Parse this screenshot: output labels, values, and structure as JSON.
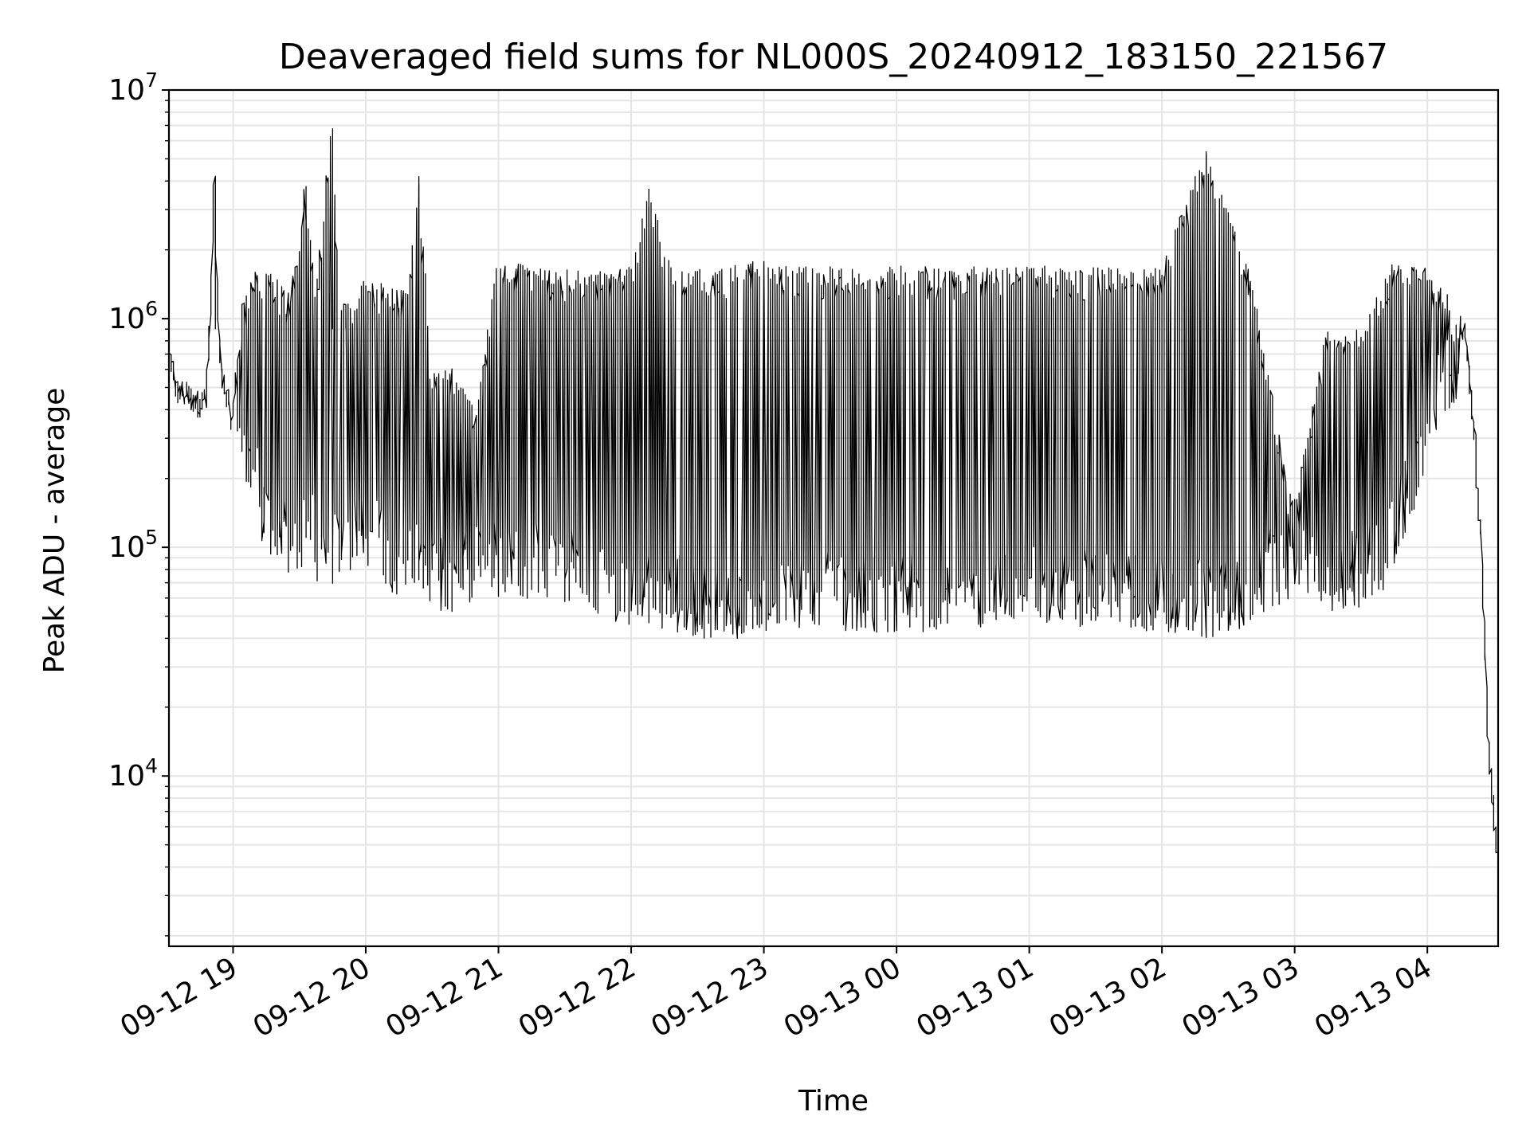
{
  "chart_data": {
    "type": "line",
    "title": "Deaveraged field sums for NL000S_20240912_183150_221567",
    "xlabel": "Time",
    "ylabel": "Peak ADU - average",
    "yscale": "log",
    "ylim": [
      1800,
      10000000
    ],
    "xlim": [
      "2024-09-12 18:31",
      "2024-09-13 04:32"
    ],
    "grid": true,
    "x_ticks": [
      {
        "time": "2024-09-12 19:00",
        "label": "09-12 19"
      },
      {
        "time": "2024-09-12 20:00",
        "label": "09-12 20"
      },
      {
        "time": "2024-09-12 21:00",
        "label": "09-12 21"
      },
      {
        "time": "2024-09-12 22:00",
        "label": "09-12 22"
      },
      {
        "time": "2024-09-12 23:00",
        "label": "09-12 23"
      },
      {
        "time": "2024-09-13 00:00",
        "label": "09-13 00"
      },
      {
        "time": "2024-09-13 01:00",
        "label": "09-13 01"
      },
      {
        "time": "2024-09-13 02:00",
        "label": "09-13 02"
      },
      {
        "time": "2024-09-13 03:00",
        "label": "09-13 03"
      },
      {
        "time": "2024-09-13 04:00",
        "label": "09-13 04"
      }
    ],
    "y_ticks": [
      {
        "value": 10000,
        "base": "10",
        "exp": "4"
      },
      {
        "value": 100000,
        "base": "10",
        "exp": "5"
      },
      {
        "value": 1000000,
        "base": "10",
        "exp": "6"
      },
      {
        "value": 10000000,
        "base": "10",
        "exp": "7"
      }
    ],
    "series_color": "#000000",
    "series": [
      {
        "x": [
          "2024-09-12 18:31",
          "2024-09-12 18:35",
          "2024-09-12 18:40",
          "2024-09-12 18:45",
          "2024-09-12 18:48",
          "2024-09-12 18:50",
          "2024-09-12 18:52",
          "2024-09-12 18:54",
          "2024-09-12 18:56",
          "2024-09-12 18:58",
          "2024-09-12 19:00",
          "2024-09-12 19:05",
          "2024-09-12 19:10",
          "2024-09-12 19:15",
          "2024-09-12 19:20",
          "2024-09-12 19:25",
          "2024-09-12 19:30",
          "2024-09-12 19:33",
          "2024-09-12 19:38",
          "2024-09-12 19:45",
          "2024-09-12 19:48",
          "2024-09-12 19:50",
          "2024-09-12 20:00",
          "2024-09-12 20:10",
          "2024-09-12 20:20",
          "2024-09-12 20:24",
          "2024-09-12 20:30",
          "2024-09-12 20:40",
          "2024-09-12 20:50",
          "2024-09-12 21:00",
          "2024-09-12 21:20",
          "2024-09-12 21:40",
          "2024-09-12 22:00",
          "2024-09-12 22:08",
          "2024-09-12 22:20",
          "2024-09-12 22:40",
          "2024-09-12 23:00",
          "2024-09-12 23:30",
          "2024-09-13 00:00",
          "2024-09-13 00:30",
          "2024-09-13 01:00",
          "2024-09-13 01:30",
          "2024-09-13 02:00",
          "2024-09-13 02:20",
          "2024-09-13 02:40",
          "2024-09-13 03:00",
          "2024-09-13 03:15",
          "2024-09-13 03:30",
          "2024-09-13 03:45",
          "2024-09-13 04:00",
          "2024-09-13 04:10",
          "2024-09-13 04:18",
          "2024-09-13 04:22",
          "2024-09-13 04:25",
          "2024-09-13 04:28",
          "2024-09-13 04:30",
          "2024-09-13 04:32"
        ],
        "y": [
          750000,
          480000,
          460000,
          420000,
          450000,
          900000,
          4100000,
          820000,
          520000,
          450000,
          350000,
          1200000,
          1600000,
          1700000,
          1500000,
          1300000,
          1900000,
          3800000,
          1400000,
          6800000,
          1500000,
          1200000,
          1500000,
          1400000,
          1300000,
          4200000,
          700000,
          600000,
          400000,
          1800000,
          1700000,
          1600000,
          1700000,
          3700000,
          1600000,
          1700000,
          1800000,
          1700000,
          1700000,
          1700000,
          1700000,
          1700000,
          1700000,
          5400000,
          1700000,
          150000,
          900000,
          900000,
          1800000,
          1700000,
          1300000,
          800000,
          300000,
          100000,
          15000,
          8000,
          4500
        ]
      },
      {
        "x": [
          "2024-09-12 19:02",
          "2024-09-12 19:06",
          "2024-09-12 19:12",
          "2024-09-12 19:18",
          "2024-09-12 19:26",
          "2024-09-12 19:35",
          "2024-09-12 19:40",
          "2024-09-12 19:52",
          "2024-09-12 20:05",
          "2024-09-12 20:15",
          "2024-09-12 20:28",
          "2024-09-12 20:35",
          "2024-09-12 20:45",
          "2024-09-12 20:55",
          "2024-09-12 21:10",
          "2024-09-12 21:30",
          "2024-09-12 21:50",
          "2024-09-12 22:10",
          "2024-09-12 22:30",
          "2024-09-12 22:50",
          "2024-09-12 23:10",
          "2024-09-12 23:40",
          "2024-09-13 00:10",
          "2024-09-13 00:40",
          "2024-09-13 01:10",
          "2024-09-13 01:40",
          "2024-09-13 02:10",
          "2024-09-13 02:30",
          "2024-09-13 02:50",
          "2024-09-13 03:05",
          "2024-09-13 03:20",
          "2024-09-13 03:40",
          "2024-09-13 03:55",
          "2024-09-13 04:05",
          "2024-09-13 04:15"
        ],
        "y": [
          260000,
          170000,
          120000,
          80000,
          70000,
          90000,
          55000,
          80000,
          75000,
          60000,
          60000,
          50000,
          55000,
          60000,
          60000,
          55000,
          45000,
          45000,
          40000,
          40000,
          45000,
          42000,
          42000,
          45000,
          45000,
          45000,
          40000,
          40000,
          55000,
          60000,
          50000,
          60000,
          150000,
          350000,
          450000
        ]
      }
    ]
  }
}
